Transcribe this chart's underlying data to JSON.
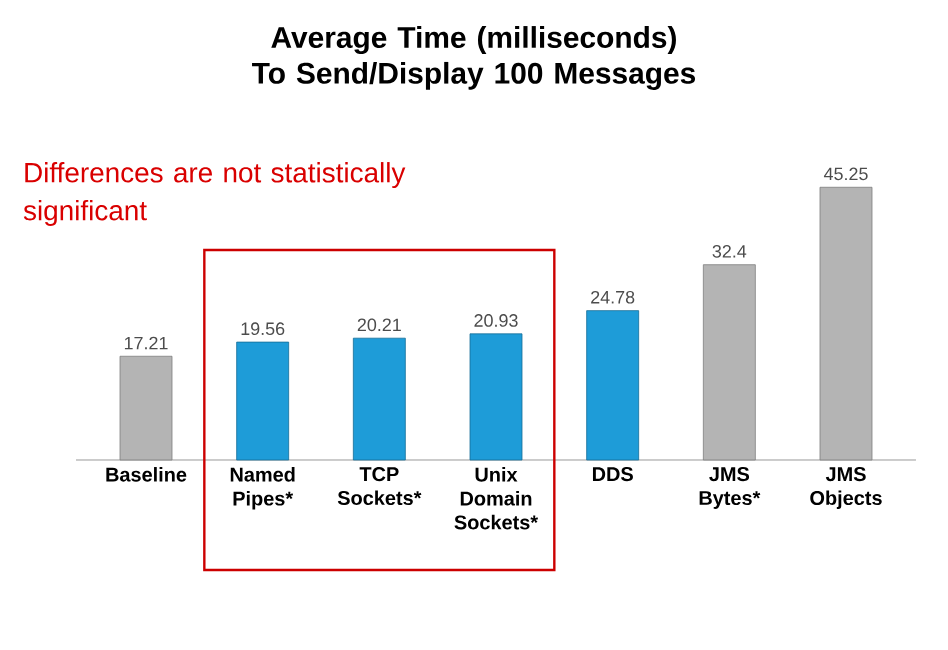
{
  "chart_data": {
    "type": "bar",
    "title": "Average Time (milliseconds) To Send/Display 100 Messages",
    "categories": [
      "Baseline",
      "Named Pipes*",
      "TCP Sockets*",
      "Unix Domain Sockets*",
      "DDS",
      "JMS Bytes*",
      "JMS Objects"
    ],
    "values": [
      17.21,
      19.56,
      20.21,
      20.93,
      24.78,
      32.4,
      45.25
    ],
    "colors": [
      "#b4b4b4",
      "#1e9cd8",
      "#1e9cd8",
      "#1e9cd8",
      "#1e9cd8",
      "#b4b4b4",
      "#b4b4b4"
    ],
    "data_labels": true,
    "annotations": [
      "Differences are not statistically significant"
    ]
  }
}
